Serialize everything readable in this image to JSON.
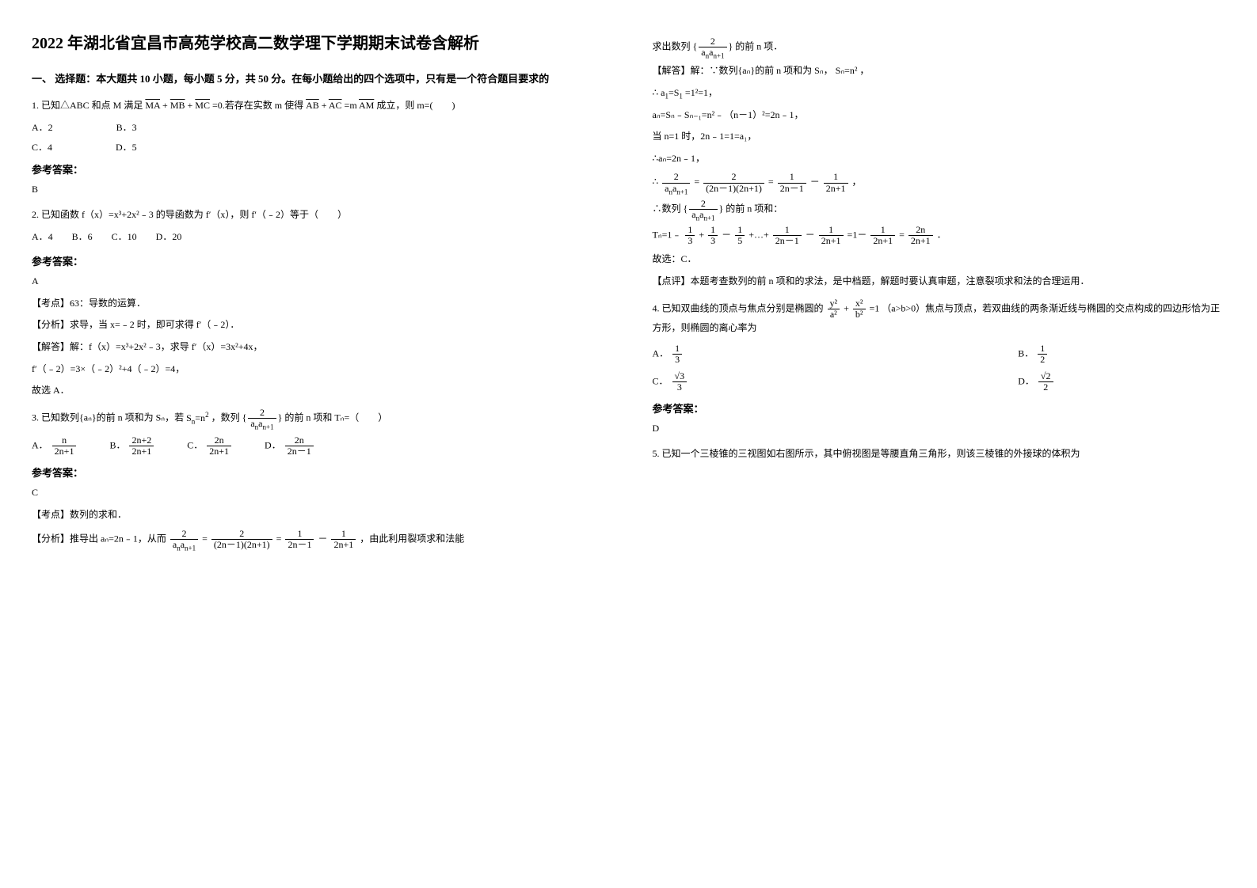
{
  "title": "2022 年湖北省宜昌市高苑学校高二数学理下学期期末试卷含解析",
  "section1_head": "一、 选择题：本大题共 10 小题，每小题 5 分，共 50 分。在每小题给出的四个选项中，只有是一个符合题目要求的",
  "q1": {
    "body_pre": "1. 已知△ABC 和点 M 满足 ",
    "body_mid1": " =0.若存在实数 m 使得 ",
    "body_mid2": " =m ",
    "body_post": " 成立，则 m=(　　)",
    "choice_a": "A．2",
    "choice_b": "B．3",
    "choice_c": "C．4",
    "choice_d": "D．5",
    "ans_label": "参考答案：",
    "ans": "B"
  },
  "q2": {
    "body": "2. 已知函数 f（x）=x³+2x²﹣3 的导函数为 f′（x），则 f′（﹣2）等于（　　）",
    "choices": "A．4　　B．6　　C．10　　D．20",
    "ans_label": "参考答案：",
    "ans": "A",
    "kd_label": "【考点】63：导数的运算．",
    "fx_label": "【分析】求导，当 x=﹣2 时，即可求得 f′（﹣2）．",
    "jd_label": "【解答】解：f（x）=x³+2x²﹣3，求导 f′（x）=3x²+4x，",
    "jd_l2": "f′（﹣2）=3×（﹣2）²+4（﹣2）=4，",
    "jd_l3": "故选 A．"
  },
  "q3": {
    "body_pre": "3. 已知数列{aₙ}的前 n 项和为 Sₙ，若 ",
    "body_mid": "，数列 ",
    "body_post": " 的前 n 项和 Tₙ=（　　）",
    "a_pre": "A．",
    "b_pre": "B．",
    "c_pre": "C．",
    "d_pre": "D．",
    "ans_label": "参考答案：",
    "ans": "C",
    "kd_label": "【考点】数列的求和．",
    "fx_pre": "【分析】推导出 aₙ=2n﹣1，从而 ",
    "fx_post": "，由此利用裂项求和法能"
  },
  "col2": {
    "l1_pre": "求出数列 ",
    "l1_post": " 的前 n 项．",
    "jd_pre": "【解答】解：∵数列{aₙ}的前 n 项和为 Sₙ，",
    "jd_eq": "Sₙ=n²",
    "jd_post": "，",
    "l3_pre": "∴ ",
    "l3_post": "=1²=1，",
    "l4": "aₙ=Sₙ﹣Sₙ₋₁=n²﹣（n－1）²=2n﹣1，",
    "l5": "当 n=1 时，2n﹣1=1=a₁，",
    "l6": "∴aₙ=2n﹣1，",
    "l7_pre": "∴",
    "l8_pre": "∴数列 ",
    "l8_post": " 的前 n 项和：",
    "l9_pre": "Tₙ=1﹣",
    "l9_post": "．",
    "l10": "故选：C．",
    "dp": "【点评】本题考查数列的前 n 项和的求法，是中档题，解题时要认真审题，注意裂项求和法的合理运用．"
  },
  "q4": {
    "body_pre": "4. 已知双曲线的顶点与焦点分别是椭圆的 ",
    "body_post": "（a>b>0）焦点与顶点，若双曲线的两条渐近线与椭圆的交点构成的四边形恰为正方形，则椭圆的离心率为",
    "a_pre": "A．",
    "b_pre": "B．",
    "c_pre": "C．",
    "d_pre": "D．",
    "ans_label": "参考答案：",
    "ans": "D"
  },
  "q5": {
    "body": "5. 已知一个三棱锥的三视图如右图所示，其中俯视图是等腰直角三角形，则该三棱锥的外接球的体积为"
  }
}
